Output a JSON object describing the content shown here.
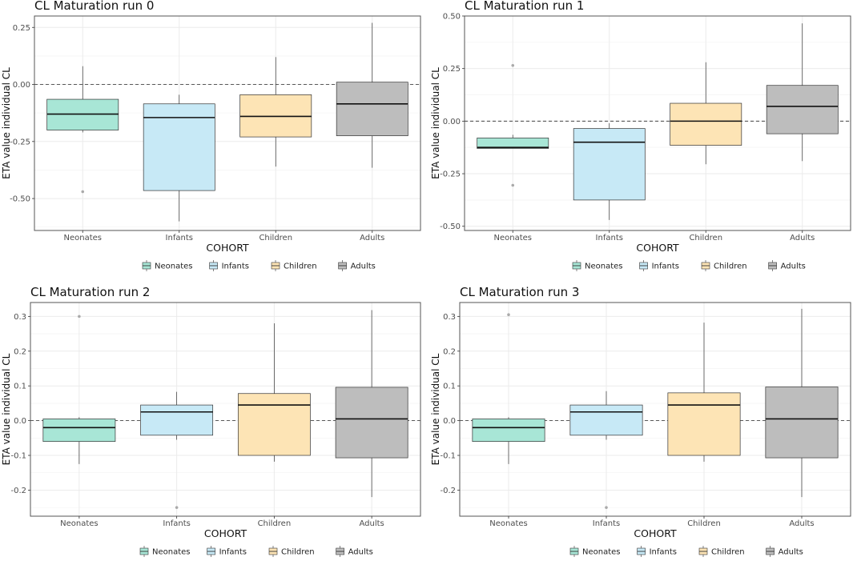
{
  "colors": {
    "Neonates": "#a8e6d6",
    "Infants": "#c7e9f6",
    "Children": "#fde4b5",
    "Adults": "#bdbdbd",
    "grid": "#ebebeb",
    "border": "#555555",
    "outlier": "#aaaaaa"
  },
  "chart_data": [
    {
      "type": "boxplot",
      "title": "CL Maturation run 0",
      "xlabel": "COHORT",
      "ylabel": "ETA value individual CL",
      "categories": [
        "Neonates",
        "Infants",
        "Children",
        "Adults"
      ],
      "ylim": [
        -0.64,
        0.3
      ],
      "yticks": [
        0.25,
        0.0,
        -0.25,
        -0.5
      ],
      "ytick_labels": [
        "0.25",
        "0.00",
        "-0.25",
        "-0.50"
      ],
      "hline": 0,
      "boxes": [
        {
          "cohort": "Neonates",
          "whisker_low": -0.21,
          "q1": -0.2,
          "median": -0.13,
          "q3": -0.065,
          "whisker_high": 0.08,
          "outliers": [
            -0.47
          ]
        },
        {
          "cohort": "Infants",
          "whisker_low": -0.6,
          "q1": -0.465,
          "median": -0.145,
          "q3": -0.085,
          "whisker_high": -0.045,
          "outliers": []
        },
        {
          "cohort": "Children",
          "whisker_low": -0.36,
          "q1": -0.23,
          "median": -0.14,
          "q3": -0.045,
          "whisker_high": 0.12,
          "outliers": []
        },
        {
          "cohort": "Adults",
          "whisker_low": -0.365,
          "q1": -0.225,
          "median": -0.085,
          "q3": 0.01,
          "whisker_high": 0.27,
          "outliers": []
        }
      ],
      "legend": [
        "Neonates",
        "Infants",
        "Children",
        "Adults"
      ]
    },
    {
      "type": "boxplot",
      "title": "CL Maturation run 1",
      "xlabel": "COHORT",
      "ylabel": "ETA value individual CL",
      "categories": [
        "Neonates",
        "Infants",
        "Children",
        "Adults"
      ],
      "ylim": [
        -0.52,
        0.5
      ],
      "yticks": [
        0.5,
        0.25,
        0.0,
        -0.25,
        -0.5
      ],
      "ytick_labels": [
        "0.50",
        "0.25",
        "0.00",
        "-0.25",
        "-0.50"
      ],
      "hline": 0,
      "boxes": [
        {
          "cohort": "Neonates",
          "whisker_low": -0.13,
          "q1": -0.13,
          "median": -0.125,
          "q3": -0.08,
          "whisker_high": -0.065,
          "outliers": [
            0.265,
            -0.305
          ]
        },
        {
          "cohort": "Infants",
          "whisker_low": -0.47,
          "q1": -0.375,
          "median": -0.1,
          "q3": -0.035,
          "whisker_high": -0.01,
          "outliers": []
        },
        {
          "cohort": "Children",
          "whisker_low": -0.205,
          "q1": -0.115,
          "median": 0.0,
          "q3": 0.085,
          "whisker_high": 0.28,
          "outliers": []
        },
        {
          "cohort": "Adults",
          "whisker_low": -0.19,
          "q1": -0.06,
          "median": 0.07,
          "q3": 0.17,
          "whisker_high": 0.465,
          "outliers": []
        }
      ],
      "legend": [
        "Neonates",
        "Infants",
        "Children",
        "Adults"
      ]
    },
    {
      "type": "boxplot",
      "title": "CL Maturation run 2",
      "xlabel": "COHORT",
      "ylabel": "ETA value individual CL",
      "categories": [
        "Neonates",
        "Infants",
        "Children",
        "Adults"
      ],
      "ylim": [
        -0.275,
        0.34
      ],
      "yticks": [
        0.3,
        0.2,
        0.1,
        0.0,
        -0.1,
        -0.2
      ],
      "ytick_labels": [
        "0.3",
        "0.2",
        "0.1",
        "0.0",
        "-0.1",
        "-0.2"
      ],
      "hline": 0,
      "boxes": [
        {
          "cohort": "Neonates",
          "whisker_low": -0.125,
          "q1": -0.06,
          "median": -0.02,
          "q3": 0.005,
          "whisker_high": 0.01,
          "outliers": [
            0.3
          ]
        },
        {
          "cohort": "Infants",
          "whisker_low": -0.055,
          "q1": -0.042,
          "median": 0.025,
          "q3": 0.045,
          "whisker_high": 0.083,
          "outliers": [
            -0.25
          ]
        },
        {
          "cohort": "Children",
          "whisker_low": -0.118,
          "q1": -0.1,
          "median": 0.045,
          "q3": 0.078,
          "whisker_high": 0.28,
          "outliers": []
        },
        {
          "cohort": "Adults",
          "whisker_low": -0.22,
          "q1": -0.107,
          "median": 0.005,
          "q3": 0.096,
          "whisker_high": 0.318,
          "outliers": []
        }
      ],
      "legend": [
        "Neonates",
        "Infants",
        "Children",
        "Adults"
      ]
    },
    {
      "type": "boxplot",
      "title": "CL Maturation run 3",
      "xlabel": "COHORT",
      "ylabel": "ETA value individual CL",
      "categories": [
        "Neonates",
        "Infants",
        "Children",
        "Adults"
      ],
      "ylim": [
        -0.275,
        0.34
      ],
      "yticks": [
        0.3,
        0.2,
        0.1,
        0.0,
        -0.1,
        -0.2
      ],
      "ytick_labels": [
        "0.3",
        "0.2",
        "0.1",
        "0.0",
        "-0.1",
        "-0.2"
      ],
      "hline": 0,
      "boxes": [
        {
          "cohort": "Neonates",
          "whisker_low": -0.125,
          "q1": -0.06,
          "median": -0.02,
          "q3": 0.005,
          "whisker_high": 0.01,
          "outliers": [
            0.305
          ]
        },
        {
          "cohort": "Infants",
          "whisker_low": -0.055,
          "q1": -0.042,
          "median": 0.025,
          "q3": 0.045,
          "whisker_high": 0.085,
          "outliers": [
            -0.25
          ]
        },
        {
          "cohort": "Children",
          "whisker_low": -0.118,
          "q1": -0.1,
          "median": 0.045,
          "q3": 0.08,
          "whisker_high": 0.282,
          "outliers": []
        },
        {
          "cohort": "Adults",
          "whisker_low": -0.22,
          "q1": -0.107,
          "median": 0.005,
          "q3": 0.097,
          "whisker_high": 0.322,
          "outliers": []
        }
      ],
      "legend": [
        "Neonates",
        "Infants",
        "Children",
        "Adults"
      ]
    }
  ]
}
